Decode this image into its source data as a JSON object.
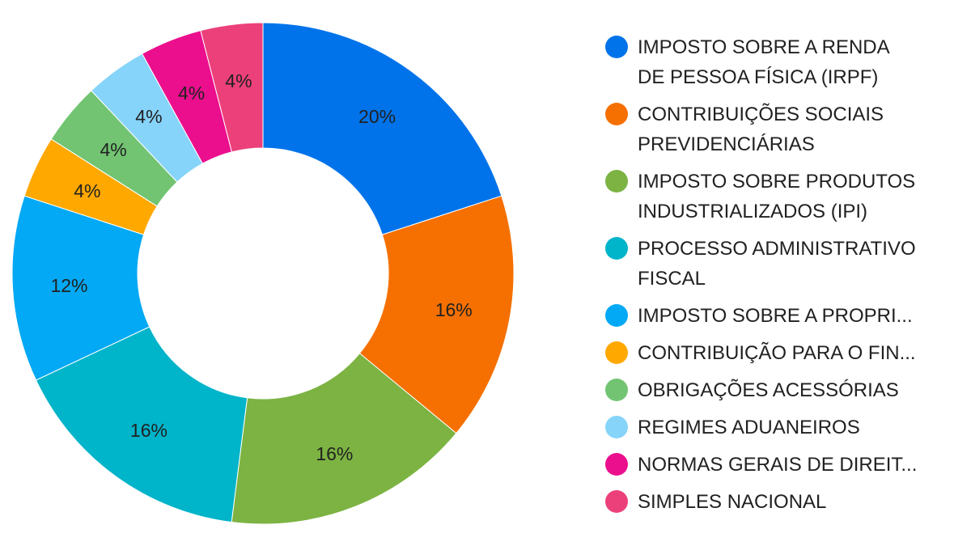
{
  "chart_data": {
    "type": "pie",
    "donut": true,
    "title": "",
    "legend_position": "right",
    "slices": [
      {
        "label": "IMPOSTO SOBRE A RENDA DE PESSOA FÍSICA (IRPF)",
        "legend_text": "IMPOSTO SOBRE A RENDA\nDE PESSOA FÍSICA (IRPF)",
        "value": 20,
        "value_label": "20%",
        "color": "#0073EA"
      },
      {
        "label": "CONTRIBUIÇÕES SOCIAIS PREVIDENCIÁRIAS",
        "legend_text": "CONTRIBUIÇÕES SOCIAIS\nPREVIDENCIÁRIAS",
        "value": 16,
        "value_label": "16%",
        "color": "#F57001"
      },
      {
        "label": "IMPOSTO SOBRE PRODUTOS INDUSTRIALIZADOS (IPI)",
        "legend_text": "IMPOSTO SOBRE PRODUTOS\nINDUSTRIALIZADOS (IPI)",
        "value": 16,
        "value_label": "16%",
        "color": "#7CB342"
      },
      {
        "label": "PROCESSO ADMINISTRATIVO FISCAL",
        "legend_text": "PROCESSO ADMINISTRATIVO\nFISCAL",
        "value": 16,
        "value_label": "16%",
        "color": "#00B4C9"
      },
      {
        "label": "IMPOSTO SOBRE A PROPRI...",
        "legend_text": "IMPOSTO SOBRE A PROPRI...",
        "value": 12,
        "value_label": "12%",
        "color": "#03A9F4"
      },
      {
        "label": "CONTRIBUIÇÃO PARA O FIN...",
        "legend_text": "CONTRIBUIÇÃO PARA O FIN...",
        "value": 4,
        "value_label": "4%",
        "color": "#FFA800"
      },
      {
        "label": "OBRIGAÇÕES ACESSÓRIAS",
        "legend_text": "OBRIGAÇÕES ACESSÓRIAS",
        "value": 4,
        "value_label": "4%",
        "color": "#72C472"
      },
      {
        "label": "REGIMES ADUANEIROS",
        "legend_text": "REGIMES ADUANEIROS",
        "value": 4,
        "value_label": "4%",
        "color": "#86D4FA"
      },
      {
        "label": "NORMAS GERAIS DE DIREIT...",
        "legend_text": "NORMAS GERAIS DE DIREIT...",
        "value": 4,
        "value_label": "4%",
        "color": "#EB0F8D"
      },
      {
        "label": "SIMPLES NACIONAL",
        "legend_text": "SIMPLES NACIONAL",
        "value": 4,
        "value_label": "4%",
        "color": "#EC407A"
      }
    ]
  }
}
